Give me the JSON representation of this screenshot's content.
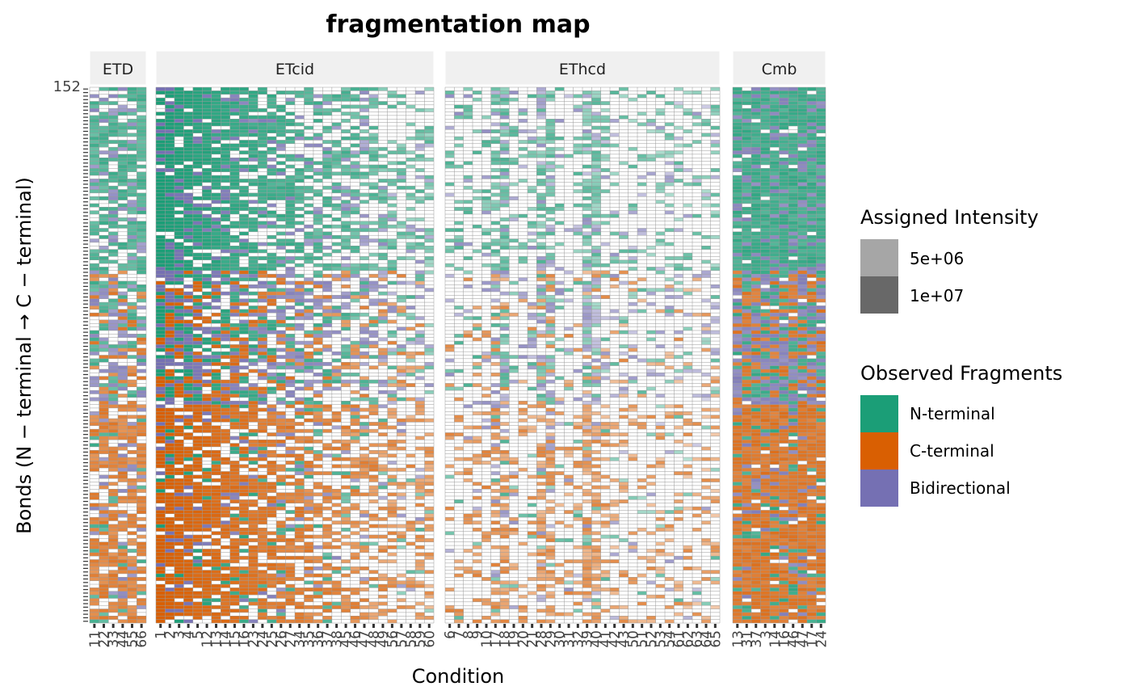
{
  "chart_data": {
    "type": "heatmap",
    "title": "fragmentation map",
    "xlabel": "Condition",
    "ylabel": "Bonds (N − terminal → C − terminal)",
    "y_top_tick": "152",
    "n_bonds": 152,
    "facets": [
      {
        "name": "ETD",
        "conditions": [
          "11",
          "22",
          "33",
          "44",
          "55",
          "66"
        ]
      },
      {
        "name": "ETcid",
        "conditions": [
          "1",
          "2",
          "3",
          "4",
          "5",
          "12",
          "13",
          "14",
          "15",
          "16",
          "23",
          "24",
          "25",
          "26",
          "27",
          "34",
          "35",
          "36",
          "37",
          "38",
          "45",
          "46",
          "47",
          "48",
          "49",
          "56",
          "57",
          "58",
          "59",
          "60"
        ]
      },
      {
        "name": "EThcd",
        "conditions": [
          "6",
          "7",
          "8",
          "9",
          "10",
          "17",
          "18",
          "19",
          "20",
          "21",
          "28",
          "29",
          "30",
          "31",
          "32",
          "39",
          "40",
          "41",
          "42",
          "43",
          "50",
          "51",
          "52",
          "53",
          "54",
          "61",
          "62",
          "63",
          "64",
          "65"
        ]
      },
      {
        "name": "Cmb",
        "conditions": [
          "13",
          "31",
          "37",
          "3",
          "14",
          "16",
          "46",
          "47",
          "17",
          "24"
        ]
      }
    ],
    "legend_intensity": {
      "title": "Assigned Intensity",
      "entries": [
        {
          "label": "5e+06",
          "color": "#a6a6a6"
        },
        {
          "label": "1e+07",
          "color": "#686868"
        }
      ]
    },
    "legend_fragments": {
      "title": "Observed Fragments",
      "entries": [
        {
          "label": "N-terminal",
          "color": "#1b9e77"
        },
        {
          "label": "C-terminal",
          "color": "#d95f02"
        },
        {
          "label": "Bidirectional",
          "color": "#7570b3"
        }
      ]
    },
    "bond_regions": [
      {
        "from": 1,
        "to": 62,
        "dominant": "C-terminal"
      },
      {
        "from": 63,
        "to": 100,
        "dominant": "mixed"
      },
      {
        "from": 101,
        "to": 152,
        "dominant": "N-terminal"
      }
    ]
  }
}
